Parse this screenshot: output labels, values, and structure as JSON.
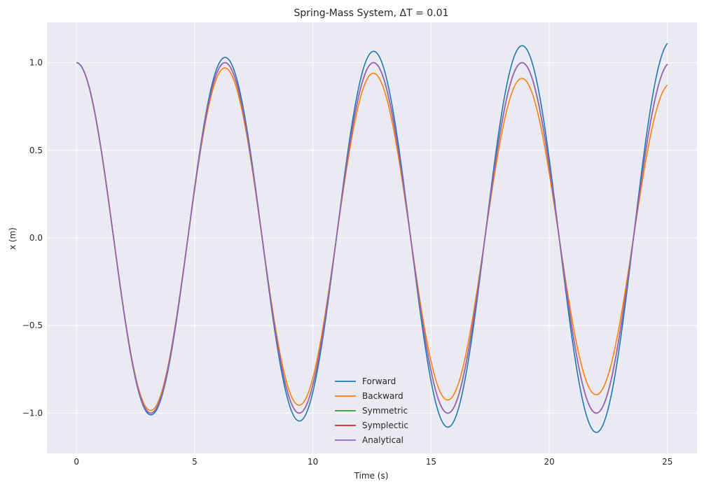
{
  "chart_data": {
    "type": "line",
    "title": "Spring-Mass System, ΔT = 0.01",
    "xlabel": "Time (s)",
    "ylabel": "x (m)",
    "xlim": [
      -1.25,
      26.25
    ],
    "ylim": [
      -1.23,
      1.23
    ],
    "xticks": [
      0,
      5,
      10,
      15,
      20,
      25
    ],
    "yticks": [
      -1.0,
      -0.5,
      0.0,
      0.5,
      1.0
    ],
    "xtick_labels": [
      "0",
      "5",
      "10",
      "15",
      "20",
      "25"
    ],
    "ytick_labels": [
      "−1.0",
      "−0.5",
      "0.0",
      "0.5",
      "1.0"
    ],
    "grid": true,
    "legend_position": "lower-center",
    "x_range": [
      0,
      25
    ],
    "series": [
      {
        "name": "Forward",
        "color": "#1f77b4",
        "amplitude_at": [
          [
            0,
            1.0
          ],
          [
            3.14,
            1.01
          ],
          [
            6.28,
            1.03
          ],
          [
            9.42,
            1.045
          ],
          [
            12.57,
            1.065
          ],
          [
            15.71,
            1.08
          ],
          [
            18.85,
            1.097
          ],
          [
            21.99,
            1.11
          ],
          [
            25,
            1.12
          ]
        ]
      },
      {
        "name": "Backward",
        "color": "#ff7f0e",
        "amplitude_at": [
          [
            0,
            1.0
          ],
          [
            3.14,
            0.985
          ],
          [
            6.28,
            0.97
          ],
          [
            9.42,
            0.955
          ],
          [
            12.57,
            0.94
          ],
          [
            15.71,
            0.925
          ],
          [
            18.85,
            0.91
          ],
          [
            21.99,
            0.895
          ],
          [
            25,
            0.88
          ]
        ]
      },
      {
        "name": "Symmetric",
        "color": "#2ca02c",
        "amplitude_at": [
          [
            0,
            1.0
          ],
          [
            25,
            1.0
          ]
        ]
      },
      {
        "name": "Symplectic",
        "color": "#d62728",
        "amplitude_at": [
          [
            0,
            1.0
          ],
          [
            25,
            1.0
          ]
        ]
      },
      {
        "name": "Analytical",
        "color": "#9467bd",
        "amplitude_at": [
          [
            0,
            1.0
          ],
          [
            25,
            1.0
          ]
        ]
      }
    ]
  }
}
